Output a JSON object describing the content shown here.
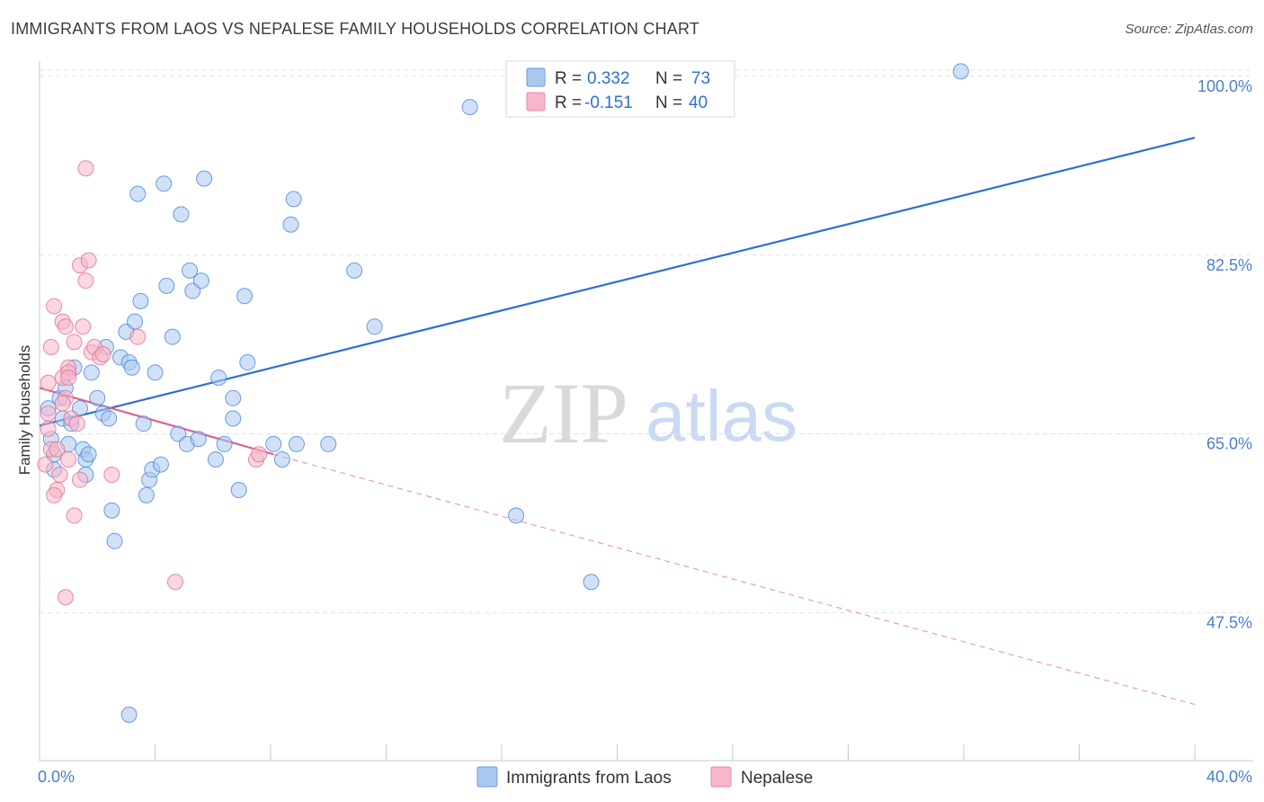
{
  "title": "IMMIGRANTS FROM LAOS VS NEPALESE FAMILY HOUSEHOLDS CORRELATION CHART",
  "source": "Source: ZipAtlas.com",
  "watermark": {
    "zip": "ZIP",
    "atlas": "atlas"
  },
  "legend_top": {
    "rows": [
      {
        "r_label": "R =",
        "r_value": "0.332",
        "n_label": "N =",
        "n_value": "73",
        "color": "#a9c8f0"
      },
      {
        "r_label": "R =",
        "r_value": "-0.151",
        "n_label": "N =",
        "n_value": "40",
        "color": "#f7b6c9"
      }
    ]
  },
  "legend_bottom": {
    "items": [
      {
        "label": "Immigrants from Laos",
        "color": "#a9c8f0"
      },
      {
        "label": "Nepalese",
        "color": "#f7b6c9"
      }
    ]
  },
  "chart_data": {
    "type": "scatter",
    "title": "IMMIGRANTS FROM LAOS VS NEPALESE FAMILY HOUSEHOLDS CORRELATION CHART",
    "xlabel": "",
    "ylabel": "Family Households",
    "xlim": [
      0,
      40
    ],
    "ylim": [
      33,
      101.5
    ],
    "x_tick_labels": [
      "0.0%",
      "40.0%"
    ],
    "y_ticks": [
      47.5,
      65.0,
      82.5,
      100.0
    ],
    "y_tick_labels": [
      "47.5%",
      "65.0%",
      "82.5%",
      "100.0%"
    ],
    "grid": true,
    "series": [
      {
        "name": "Immigrants from Laos",
        "color": "#4a86d8",
        "fill": "#a9c8f0",
        "trend": {
          "x": [
            0,
            40
          ],
          "y": [
            65.8,
            94.0
          ],
          "style": "solid"
        },
        "points": [
          [
            0.3,
            67.5
          ],
          [
            0.4,
            64.5
          ],
          [
            0.5,
            63.0
          ],
          [
            0.5,
            61.5
          ],
          [
            0.7,
            68.5
          ],
          [
            0.8,
            66.5
          ],
          [
            0.9,
            69.5
          ],
          [
            1.0,
            64.0
          ],
          [
            1.1,
            66.0
          ],
          [
            1.2,
            71.5
          ],
          [
            1.4,
            67.5
          ],
          [
            1.5,
            63.5
          ],
          [
            1.6,
            61.0
          ],
          [
            1.6,
            62.5
          ],
          [
            1.7,
            63.0
          ],
          [
            1.8,
            71.0
          ],
          [
            2.0,
            68.5
          ],
          [
            2.2,
            67.0
          ],
          [
            2.3,
            73.5
          ],
          [
            2.4,
            66.5
          ],
          [
            2.5,
            57.5
          ],
          [
            2.6,
            54.5
          ],
          [
            2.8,
            72.5
          ],
          [
            3.0,
            75.0
          ],
          [
            3.1,
            72.0
          ],
          [
            3.2,
            71.5
          ],
          [
            3.3,
            76.0
          ],
          [
            3.4,
            88.5
          ],
          [
            3.5,
            78.0
          ],
          [
            3.6,
            66.0
          ],
          [
            3.7,
            59.0
          ],
          [
            3.8,
            60.5
          ],
          [
            3.9,
            61.5
          ],
          [
            4.0,
            71.0
          ],
          [
            4.2,
            62.0
          ],
          [
            4.3,
            89.5
          ],
          [
            4.4,
            79.5
          ],
          [
            4.6,
            74.5
          ],
          [
            4.8,
            65.0
          ],
          [
            4.9,
            86.5
          ],
          [
            5.1,
            64.0
          ],
          [
            5.2,
            81.0
          ],
          [
            5.3,
            79.0
          ],
          [
            5.5,
            64.5
          ],
          [
            5.6,
            80.0
          ],
          [
            5.7,
            90.0
          ],
          [
            6.1,
            62.5
          ],
          [
            6.2,
            70.5
          ],
          [
            6.4,
            64.0
          ],
          [
            6.7,
            68.5
          ],
          [
            6.7,
            66.5
          ],
          [
            6.9,
            59.5
          ],
          [
            7.1,
            78.5
          ],
          [
            7.2,
            72.0
          ],
          [
            8.1,
            64.0
          ],
          [
            8.4,
            62.5
          ],
          [
            8.7,
            85.5
          ],
          [
            8.8,
            88.0
          ],
          [
            8.9,
            64.0
          ],
          [
            10.0,
            64.0
          ],
          [
            10.9,
            81.0
          ],
          [
            11.6,
            75.5
          ],
          [
            14.9,
            97.0
          ],
          [
            16.5,
            57.0
          ],
          [
            19.1,
            50.5
          ],
          [
            31.9,
            100.5
          ],
          [
            3.1,
            37.5
          ]
        ]
      },
      {
        "name": "Nepalese",
        "color": "#e07090",
        "fill": "#f7b6c9",
        "trend": {
          "x": [
            0,
            8.1
          ],
          "y": [
            69.5,
            63.0
          ],
          "style": "solid"
        },
        "trend_dashed": {
          "x": [
            8.1,
            40
          ],
          "y": [
            63.0,
            38.5
          ],
          "style": "dashed"
        },
        "points": [
          [
            0.2,
            62.0
          ],
          [
            0.3,
            65.5
          ],
          [
            0.3,
            70.0
          ],
          [
            0.4,
            73.5
          ],
          [
            0.4,
            63.5
          ],
          [
            0.5,
            77.5
          ],
          [
            0.6,
            59.5
          ],
          [
            0.6,
            63.5
          ],
          [
            0.7,
            61.0
          ],
          [
            0.8,
            76.0
          ],
          [
            0.8,
            70.5
          ],
          [
            0.9,
            75.5
          ],
          [
            0.9,
            49.0
          ],
          [
            0.9,
            68.5
          ],
          [
            1.0,
            71.5
          ],
          [
            1.0,
            71.0
          ],
          [
            1.0,
            70.5
          ],
          [
            1.1,
            66.5
          ],
          [
            1.2,
            74.0
          ],
          [
            1.2,
            57.0
          ],
          [
            1.4,
            60.5
          ],
          [
            1.4,
            81.5
          ],
          [
            1.5,
            75.5
          ],
          [
            1.6,
            80.0
          ],
          [
            1.6,
            91.0
          ],
          [
            1.7,
            82.0
          ],
          [
            1.8,
            73.0
          ],
          [
            1.9,
            73.5
          ],
          [
            2.1,
            72.5
          ],
          [
            2.2,
            72.8
          ],
          [
            2.5,
            61.0
          ],
          [
            3.4,
            74.5
          ],
          [
            4.7,
            50.5
          ],
          [
            7.5,
            62.5
          ],
          [
            7.6,
            63.0
          ],
          [
            0.5,
            59.0
          ],
          [
            0.3,
            67.0
          ],
          [
            1.3,
            66.0
          ],
          [
            0.8,
            68.0
          ],
          [
            1.0,
            62.5
          ]
        ]
      }
    ]
  }
}
